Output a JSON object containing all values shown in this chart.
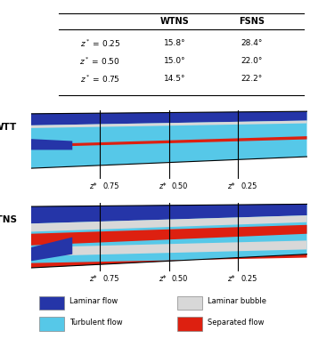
{
  "table": {
    "col_headers": [
      "WTNS",
      "FSNS"
    ],
    "rows": [
      {
        "label": "z* = 0.25",
        "wtns": "15.8°",
        "fsns": "28.4°"
      },
      {
        "label": "z* = 0.50",
        "wtns": "15.0°",
        "fsns": "22.0°"
      },
      {
        "label": "z* = 0.75",
        "wtns": "14.5°",
        "fsns": "22.2°"
      }
    ]
  },
  "wtt_label": "WTT",
  "wtns_label": "WTNS",
  "zone_labels": [
    "z* 0.75",
    "z* 0.50",
    "z* 0.25"
  ],
  "colors": {
    "laminar": "#2535a8",
    "turbulent": "#56c8e8",
    "laminar_bubble": "#d8d8d8",
    "separated": "#dd2010",
    "black": "#000000",
    "white": "#ffffff"
  },
  "legend": [
    {
      "color": "#2535a8",
      "label": "Laminar flow"
    },
    {
      "color": "#56c8e8",
      "label": "Turbulent flow"
    },
    {
      "color": "#d8d8d8",
      "label": "Laminar bubble"
    },
    {
      "color": "#dd2010",
      "label": "Separated flow"
    }
  ]
}
